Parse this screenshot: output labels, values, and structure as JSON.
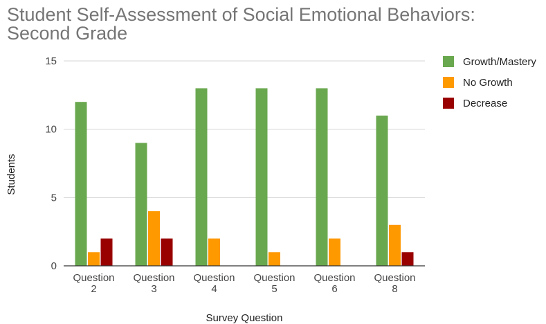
{
  "chart_data": {
    "type": "bar",
    "title_lines": [
      "Student Self-Assessment of Social Emotional Behaviors:",
      "Second Grade"
    ],
    "xlabel": "Survey Question",
    "ylabel": "Students",
    "ylim": [
      0,
      15
    ],
    "yticks": [
      0,
      5,
      10,
      15
    ],
    "grid": true,
    "legend_position": "right",
    "categories": [
      [
        "Question",
        "2"
      ],
      [
        "Question",
        "3"
      ],
      [
        "Question",
        "4"
      ],
      [
        "Question",
        "5"
      ],
      [
        "Question",
        "6"
      ],
      [
        "Question",
        "8"
      ]
    ],
    "series": [
      {
        "name": "Growth/Mastery",
        "color": "#6aa84f",
        "values": [
          12,
          9,
          13,
          13,
          13,
          11
        ]
      },
      {
        "name": "No Growth",
        "color": "#ff9900",
        "values": [
          1,
          4,
          2,
          1,
          2,
          3
        ]
      },
      {
        "name": "Decrease",
        "color": "#990000",
        "values": [
          2,
          2,
          0,
          0,
          0,
          1
        ]
      }
    ]
  }
}
